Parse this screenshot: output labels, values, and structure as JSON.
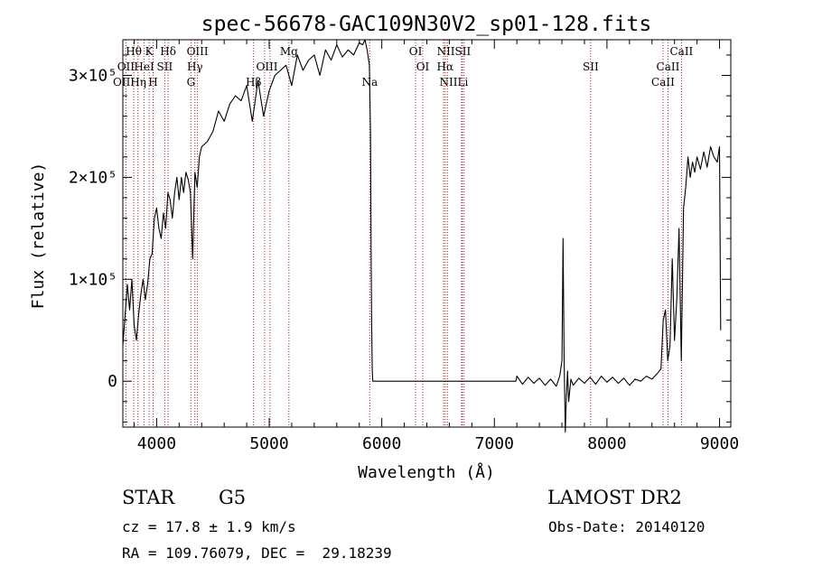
{
  "chart_data": {
    "type": "line",
    "title": "spec-56678-GAC109N30V2_sp01-128.fits",
    "xlabel": "Wavelength (Å)",
    "ylabel": "Flux (relative)",
    "xlim": [
      3700,
      9100
    ],
    "ylim": [
      -45000,
      335000
    ],
    "x_ticks": [
      4000,
      5000,
      6000,
      7000,
      8000,
      9000
    ],
    "x_tick_labels": [
      "4000",
      "5000",
      "6000",
      "7000",
      "8000",
      "9000"
    ],
    "y_ticks": [
      0,
      100000,
      200000,
      300000
    ],
    "y_tick_labels": [
      "0",
      "1×10⁵",
      "2×10⁵",
      "3×10⁵"
    ],
    "grid": false,
    "series": [
      {
        "color": "#000000",
        "x": [
          3700,
          3720,
          3740,
          3760,
          3780,
          3800,
          3820,
          3840,
          3860,
          3880,
          3900,
          3920,
          3940,
          3960,
          3980,
          4000,
          4020,
          4040,
          4060,
          4080,
          4100,
          4120,
          4140,
          4160,
          4180,
          4200,
          4220,
          4240,
          4260,
          4280,
          4300,
          4320,
          4340,
          4360,
          4380,
          4400,
          4450,
          4500,
          4550,
          4600,
          4650,
          4700,
          4750,
          4800,
          4850,
          4900,
          4950,
          5000,
          5050,
          5100,
          5150,
          5200,
          5250,
          5300,
          5350,
          5400,
          5450,
          5500,
          5550,
          5600,
          5650,
          5700,
          5750,
          5800,
          5830,
          5850,
          5870,
          5890,
          5900,
          5905,
          5910,
          5915,
          5920,
          5930,
          6000,
          6500,
          7000,
          7190,
          7200,
          7250,
          7300,
          7350,
          7400,
          7450,
          7500,
          7550,
          7580,
          7600,
          7610,
          7620,
          7630,
          7640,
          7650,
          7660,
          7680,
          7700,
          7750,
          7800,
          7850,
          7900,
          7950,
          8000,
          8050,
          8100,
          8150,
          8200,
          8250,
          8300,
          8350,
          8400,
          8450,
          8480,
          8500,
          8520,
          8540,
          8560,
          8580,
          8600,
          8620,
          8640,
          8660,
          8680,
          8700,
          8720,
          8740,
          8760,
          8780,
          8800,
          8830,
          8860,
          8890,
          8920,
          8950,
          8980,
          9000,
          9010
        ],
        "y": [
          35000,
          65000,
          95000,
          70000,
          100000,
          55000,
          40000,
          65000,
          85000,
          100000,
          80000,
          95000,
          120000,
          125000,
          160000,
          170000,
          150000,
          140000,
          165000,
          150000,
          185000,
          178000,
          160000,
          185000,
          200000,
          178000,
          200000,
          185000,
          205000,
          198000,
          185000,
          120000,
          205000,
          190000,
          220000,
          230000,
          235000,
          245000,
          265000,
          255000,
          272000,
          280000,
          275000,
          290000,
          255000,
          295000,
          260000,
          285000,
          300000,
          305000,
          310000,
          290000,
          320000,
          305000,
          315000,
          320000,
          300000,
          325000,
          315000,
          330000,
          318000,
          325000,
          320000,
          332000,
          330000,
          335000,
          325000,
          310000,
          240000,
          130000,
          60000,
          10000,
          0,
          0,
          0,
          0,
          0,
          0,
          5000,
          -3000,
          4000,
          -2000,
          3000,
          -4000,
          2000,
          -5000,
          5000,
          20000,
          140000,
          20000,
          -50000,
          -15000,
          10000,
          -20000,
          2000,
          -4000,
          3000,
          -2000,
          4000,
          -3000,
          5000,
          -1000,
          4000,
          -2000,
          3000,
          -4000,
          2000,
          0,
          5000,
          2000,
          8000,
          12000,
          60000,
          70000,
          20000,
          35000,
          120000,
          40000,
          80000,
          150000,
          20000,
          170000,
          190000,
          220000,
          200000,
          215000,
          205000,
          220000,
          208000,
          225000,
          210000,
          230000,
          220000,
          215000,
          230000,
          50000
        ]
      }
    ],
    "lines": [
      {
        "name": "Hθ",
        "x": 3797
      },
      {
        "name": "OII",
        "x": 3727
      },
      {
        "name": "Hη",
        "x": 3835
      },
      {
        "name": "HeI",
        "x": 3889
      },
      {
        "name": "K",
        "x": 3934
      },
      {
        "name": "H",
        "x": 3969
      },
      {
        "name": "SII",
        "x": 4072
      },
      {
        "name": "Hδ",
        "x": 4102
      },
      {
        "name": "G",
        "x": 4305
      },
      {
        "name": "Hγ",
        "x": 4340
      },
      {
        "name": "OIII",
        "x": 4363
      },
      {
        "name": "Hβ",
        "x": 4861
      },
      {
        "name": "OIII",
        "x": 4959
      },
      {
        "name": "OIII",
        "x": 5007
      },
      {
        "name": "Mg",
        "x": 5175
      },
      {
        "name": "Na",
        "x": 5893
      },
      {
        "name": "OI",
        "x": 6300
      },
      {
        "name": "OI",
        "x": 6364
      },
      {
        "name": "NII",
        "x": 6548
      },
      {
        "name": "Hα",
        "x": 6563
      },
      {
        "name": "NII",
        "x": 6583
      },
      {
        "name": "Li",
        "x": 6708
      },
      {
        "name": "SII",
        "x": 6716
      },
      {
        "name": "SII",
        "x": 6731
      },
      {
        "name": "SII",
        "x": 7855
      },
      {
        "name": "CaII",
        "x": 8498
      },
      {
        "name": "CaII",
        "x": 8542
      },
      {
        "name": "CaII",
        "x": 8662
      }
    ],
    "line_color": "#b22222"
  },
  "labels": [
    {
      "text": "Hθ",
      "x": 3797,
      "row": 0
    },
    {
      "text": "K",
      "x": 3934,
      "row": 0
    },
    {
      "text": "Hδ",
      "x": 4102,
      "row": 0
    },
    {
      "text": "OIII",
      "x": 4363,
      "row": 0
    },
    {
      "text": "Mg",
      "x": 5175,
      "row": 0
    },
    {
      "text": "OI",
      "x": 6300,
      "row": 0
    },
    {
      "text": "NIISII",
      "x": 6640,
      "row": 0
    },
    {
      "text": "CaII",
      "x": 8662,
      "row": 0
    },
    {
      "text": "OII",
      "x": 3727,
      "row": 1
    },
    {
      "text": "HeI",
      "x": 3889,
      "row": 1
    },
    {
      "text": "SII",
      "x": 4072,
      "row": 1
    },
    {
      "text": "Hγ",
      "x": 4340,
      "row": 1
    },
    {
      "text": "OIII",
      "x": 4980,
      "row": 1
    },
    {
      "text": "OI",
      "x": 6364,
      "row": 1
    },
    {
      "text": "Hα",
      "x": 6563,
      "row": 1
    },
    {
      "text": "SII",
      "x": 7855,
      "row": 1
    },
    {
      "text": "CaII",
      "x": 8542,
      "row": 1
    },
    {
      "text": "OIIHη",
      "x": 3760,
      "row": 2
    },
    {
      "text": "H",
      "x": 3969,
      "row": 2
    },
    {
      "text": "G",
      "x": 4305,
      "row": 2
    },
    {
      "text": "Hβ",
      "x": 4861,
      "row": 2
    },
    {
      "text": "Na",
      "x": 5893,
      "row": 2
    },
    {
      "text": "NIILi",
      "x": 6640,
      "row": 2
    },
    {
      "text": "CaII",
      "x": 8498,
      "row": 2
    }
  ],
  "info": {
    "object_class": "STAR",
    "subclass": "G5",
    "survey": "LAMOST DR2",
    "cz": "cz = 17.8 ± 1.9 km/s",
    "obs_date": "Obs-Date: 20140120",
    "coords": "RA = 109.76079, DEC =  29.18239"
  }
}
